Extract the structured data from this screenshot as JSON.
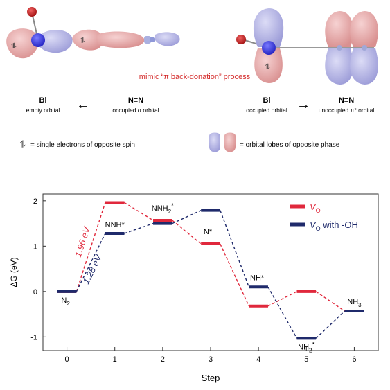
{
  "scheme": {
    "caption": "mimic “π back-donation” process",
    "left": {
      "bi_label": "Bi",
      "bi_sub": "empty orbital",
      "n2_label": "N≡N",
      "n2_sub": "occupied σ orbital",
      "arrow": "←"
    },
    "right": {
      "bi_label": "Bi",
      "bi_sub": "occupied orbital",
      "n2_label": "N≡N",
      "n2_sub": "unoccupied π* orbital",
      "arrow": "→"
    },
    "legend_spin": "= single electrons of opposite spin",
    "legend_phase": "= orbital lobes of opposite phase",
    "colors": {
      "lobe_blue": "#b8b8e6",
      "lobe_pink": "#eab0b0",
      "atom_blue": "#3a3ae0",
      "atom_red": "#c02020",
      "caption_red": "#d42a2a"
    }
  },
  "chart_data": {
    "type": "line",
    "xlabel": "Step",
    "ylabel": "ΔG (eV)",
    "x": [
      0,
      1,
      2,
      3,
      4,
      5,
      6
    ],
    "xlim": [
      -0.5,
      6.5
    ],
    "ylim": [
      -1.3,
      2.15
    ],
    "yticks": [
      -1,
      0,
      1,
      2
    ],
    "xticks": [
      0,
      1,
      2,
      3,
      4,
      5,
      6
    ],
    "series": [
      {
        "name": "V_O",
        "legend_main": "V",
        "legend_sub": "O",
        "legend_suffix": "",
        "color": "#e0283c",
        "values": [
          0,
          1.96,
          1.57,
          1.05,
          -0.32,
          0.0,
          -0.43
        ]
      },
      {
        "name": "V_O with -OH",
        "legend_main": "V",
        "legend_sub": "O",
        "legend_suffix": " with -OH",
        "color": "#1f2a6b",
        "values": [
          0,
          1.28,
          1.5,
          1.79,
          0.1,
          -1.03,
          -0.43
        ]
      }
    ],
    "point_labels": [
      {
        "main": "N",
        "sub": "2",
        "sup": "",
        "x": 0,
        "y": 0
      },
      {
        "main": "NNH*",
        "sub": "",
        "sup": "",
        "x": 1,
        "y": 1.28
      },
      {
        "main": "NNH",
        "sub": "2",
        "sup": "*",
        "x": 2,
        "y": 1.57
      },
      {
        "main": "N*",
        "sub": "",
        "sup": "",
        "x": 3,
        "y": 1.05
      },
      {
        "main": "NH*",
        "sub": "",
        "sup": "",
        "x": 4,
        "y": 0.1
      },
      {
        "main": "NH",
        "sub": "2",
        "sup": "*",
        "x": 5,
        "y": -1.03
      },
      {
        "main": "NH",
        "sub": "3",
        "sup": "",
        "x": 6,
        "y": -0.43
      }
    ],
    "annotations": [
      {
        "text": "1.96 eV",
        "series": 0
      },
      {
        "text": "1.28 eV",
        "series": 1
      }
    ]
  }
}
